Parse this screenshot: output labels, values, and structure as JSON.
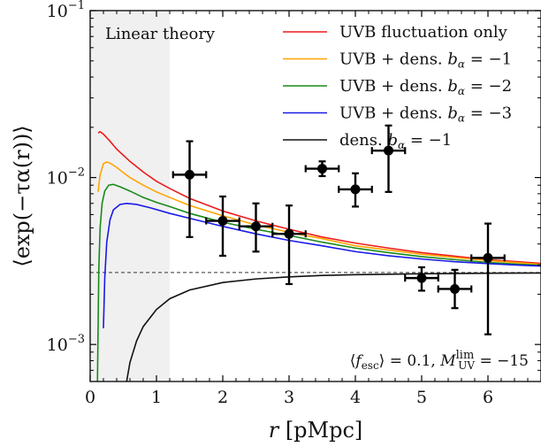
{
  "chart_data": {
    "type": "line",
    "xlim": [
      0,
      6.8
    ],
    "ylim": [
      0.0006,
      0.1
    ],
    "yscale": "log",
    "x_ticks": [
      0,
      1,
      2,
      3,
      4,
      5,
      6
    ],
    "x_tick_labels": [
      "0",
      "1",
      "2",
      "3",
      "4",
      "5",
      "6"
    ],
    "y_ticks": [
      0.001,
      0.01,
      0.1
    ],
    "y_tick_labels": [
      {
        "base": "10",
        "exp": "−3"
      },
      {
        "base": "10",
        "exp": "−2"
      },
      {
        "base": "10",
        "exp": "−1"
      }
    ],
    "xlabel": {
      "italic": "r",
      "rest": " [pMpc]"
    },
    "ylabel": "⟨exp(−τα(r))⟩",
    "shaded_region": {
      "x": [
        0,
        1.2
      ],
      "color": "#f0f0f0",
      "label": "Linear theory"
    },
    "reference_line": {
      "y": 0.0027,
      "style": "dashed",
      "color": "#333333"
    },
    "legend_position": "top-right",
    "annotation": {
      "text": "⟨f_esc⟩ = 0.1, M_UV^lim = −15",
      "position": "bottom-right"
    },
    "series": [
      {
        "name": "UVB fluctuation only",
        "color": "#ee1c1c",
        "x": [
          0.12,
          0.15,
          0.2,
          0.3,
          0.4,
          0.5,
          0.6,
          0.8,
          1.0,
          1.2,
          1.5,
          2.0,
          2.5,
          3.0,
          3.5,
          4.0,
          4.5,
          5.0,
          5.5,
          6.0,
          6.5,
          6.8
        ],
        "y": [
          0.0185,
          0.0188,
          0.0182,
          0.0165,
          0.0148,
          0.0136,
          0.0125,
          0.0108,
          0.0095,
          0.0086,
          0.0075,
          0.0063,
          0.0055,
          0.0049,
          0.0044,
          0.00405,
          0.00378,
          0.00355,
          0.00338,
          0.00322,
          0.00312,
          0.00306
        ]
      },
      {
        "name": "UVB + dens. b_α = −1",
        "legend": {
          "text": "UVB + dens. ",
          "sym": "b",
          "sub": "α",
          "rest": " = −1"
        },
        "color": "#ffa500",
        "x": [
          0.12,
          0.15,
          0.2,
          0.25,
          0.3,
          0.4,
          0.5,
          0.6,
          0.8,
          1.0,
          1.2,
          1.5,
          2.0,
          2.5,
          3.0,
          3.5,
          4.0,
          4.5,
          5.0,
          5.5,
          6.0,
          6.5,
          6.8
        ],
        "y": [
          0.0082,
          0.0104,
          0.0121,
          0.0124,
          0.0122,
          0.0115,
          0.0107,
          0.01,
          0.009,
          0.0082,
          0.0076,
          0.0068,
          0.0059,
          0.0052,
          0.0047,
          0.0043,
          0.0039,
          0.00368,
          0.00347,
          0.00332,
          0.00318,
          0.00308,
          0.00302
        ]
      },
      {
        "name": "UVB + dens. b_α = −2",
        "legend": {
          "text": "UVB + dens. ",
          "sym": "b",
          "sub": "α",
          "rest": " = −2"
        },
        "color": "#1a8a1a",
        "x": [
          0.11,
          0.13,
          0.15,
          0.18,
          0.22,
          0.28,
          0.35,
          0.45,
          0.6,
          0.8,
          1.0,
          1.2,
          1.5,
          2.0,
          2.5,
          3.0,
          3.5,
          4.0,
          4.5,
          5.0,
          5.5,
          6.0,
          6.5,
          6.8
        ],
        "y": [
          0.0006,
          0.0028,
          0.005,
          0.007,
          0.0083,
          0.009,
          0.0091,
          0.0088,
          0.0083,
          0.0076,
          0.0071,
          0.0067,
          0.0061,
          0.0054,
          0.0049,
          0.0045,
          0.0041,
          0.00378,
          0.00355,
          0.00336,
          0.00322,
          0.0031,
          0.00302,
          0.00298
        ]
      },
      {
        "name": "UVB + dens. b_α = −3",
        "legend": {
          "text": "UVB + dens. ",
          "sym": "b",
          "sub": "α",
          "rest": " = −3"
        },
        "color": "#1a1ae6",
        "x": [
          0.2,
          0.22,
          0.25,
          0.3,
          0.35,
          0.45,
          0.55,
          0.7,
          0.9,
          1.2,
          1.5,
          2.0,
          2.5,
          3.0,
          3.5,
          4.0,
          4.5,
          5.0,
          5.5,
          6.0,
          6.5,
          6.8
        ],
        "y": [
          0.00125,
          0.0025,
          0.0041,
          0.0056,
          0.0064,
          0.0069,
          0.007,
          0.0069,
          0.0066,
          0.0061,
          0.0057,
          0.0051,
          0.0046,
          0.0042,
          0.0039,
          0.0036,
          0.0034,
          0.00325,
          0.00313,
          0.00305,
          0.00298,
          0.00295
        ]
      },
      {
        "name": "dens. b_α = −1",
        "legend": {
          "text": "dens. ",
          "sym": "b",
          "sub": "α",
          "rest": " = −1"
        },
        "color": "#111111",
        "x": [
          0.55,
          0.6,
          0.7,
          0.8,
          1.0,
          1.2,
          1.5,
          2.0,
          2.5,
          3.0,
          3.5,
          4.0,
          5.0,
          6.0,
          6.8
        ],
        "y": [
          0.0006,
          0.00078,
          0.00105,
          0.00128,
          0.00162,
          0.00188,
          0.00212,
          0.00235,
          0.00247,
          0.00254,
          0.00259,
          0.00262,
          0.00265,
          0.00267,
          0.00268
        ]
      }
    ],
    "observations": {
      "color": "#000000",
      "points": [
        {
          "x": 1.5,
          "y": 0.0104,
          "xerr": 0.25,
          "ylo": 0.0044,
          "yhi": 0.0165
        },
        {
          "x": 2.0,
          "y": 0.0055,
          "xerr": 0.25,
          "ylo": 0.0034,
          "yhi": 0.0077
        },
        {
          "x": 2.5,
          "y": 0.0051,
          "xerr": 0.25,
          "ylo": 0.0036,
          "yhi": 0.007
        },
        {
          "x": 3.0,
          "y": 0.0046,
          "xerr": 0.25,
          "ylo": 0.0023,
          "yhi": 0.0068
        },
        {
          "x": 3.5,
          "y": 0.0113,
          "xerr": 0.25,
          "ylo": 0.0102,
          "yhi": 0.0125
        },
        {
          "x": 4.0,
          "y": 0.0085,
          "xerr": 0.25,
          "ylo": 0.0067,
          "yhi": 0.0106
        },
        {
          "x": 4.5,
          "y": 0.0145,
          "xerr": 0.25,
          "ylo": 0.0082,
          "yhi": 0.0205
        },
        {
          "x": 5.0,
          "y": 0.0025,
          "xerr": 0.25,
          "ylo": 0.0021,
          "yhi": 0.0029
        },
        {
          "x": 5.5,
          "y": 0.00215,
          "xerr": 0.25,
          "ylo": 0.00165,
          "yhi": 0.0028
        },
        {
          "x": 6.0,
          "y": 0.0033,
          "xerr": 0.25,
          "ylo": 0.00115,
          "yhi": 0.0053
        }
      ]
    }
  }
}
